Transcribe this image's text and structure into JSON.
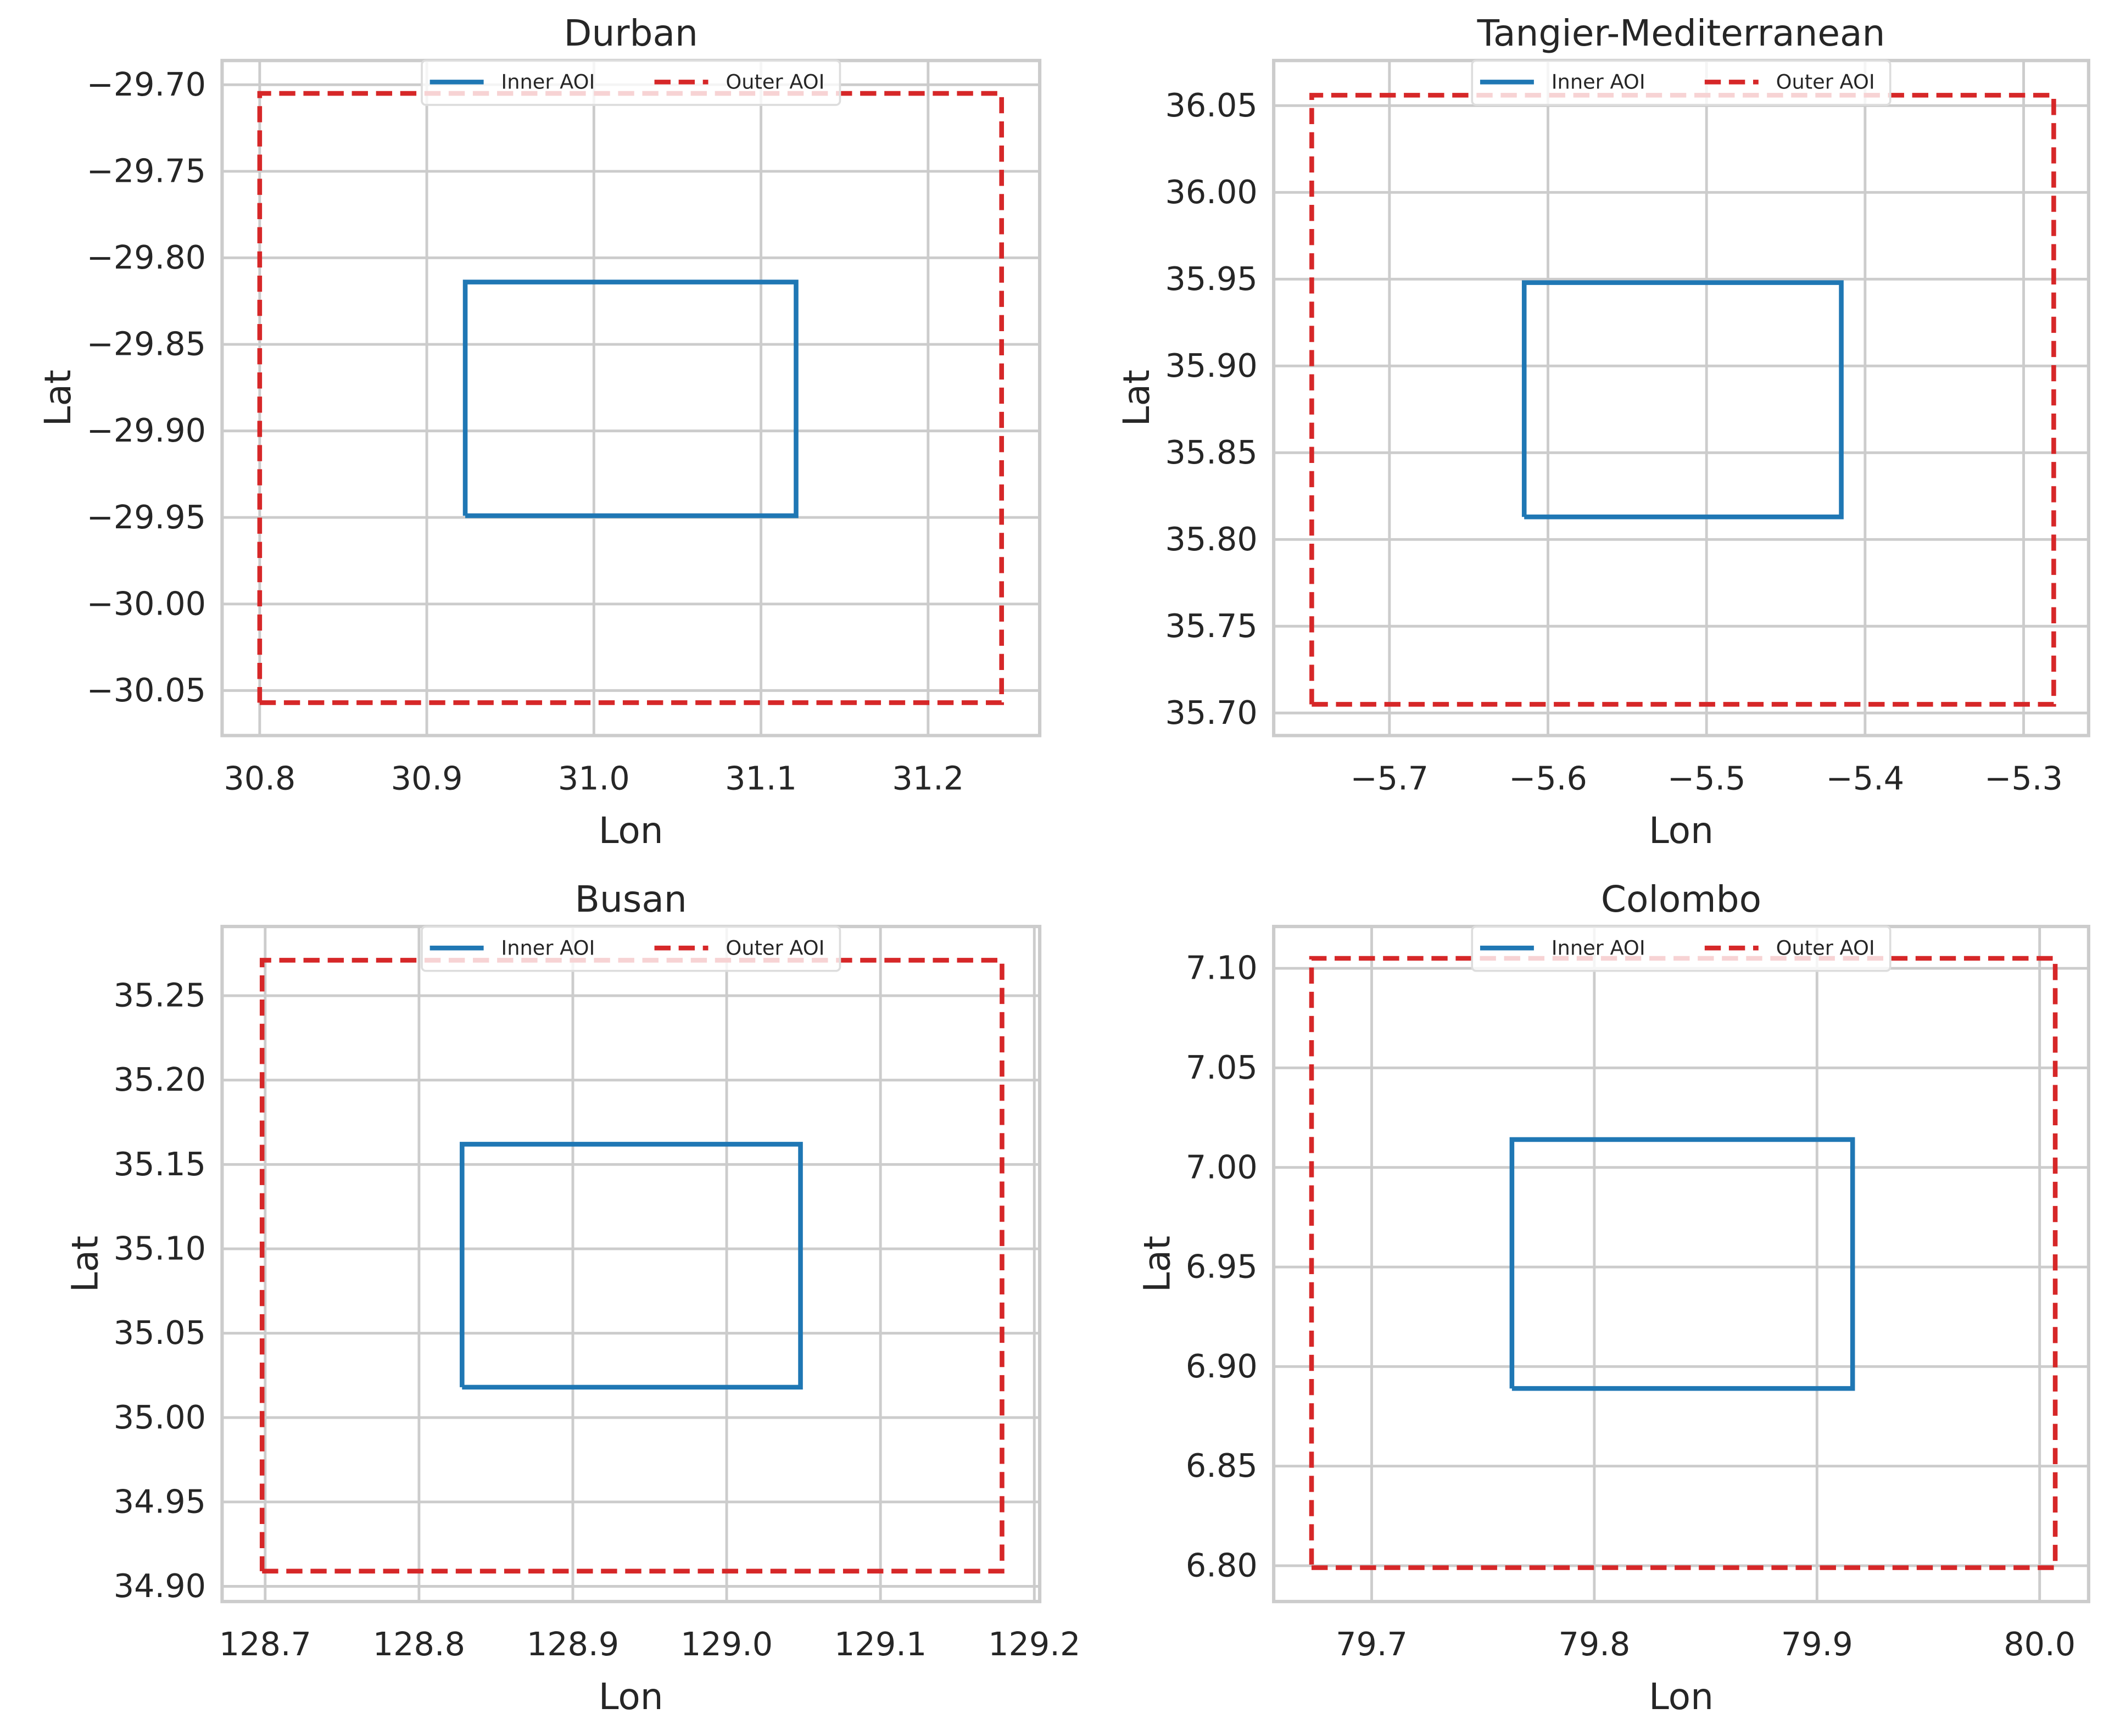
{
  "chart_data": [
    {
      "type": "line",
      "title": "Durban",
      "x_label": "Lon",
      "y_label": "Lat",
      "grid": true,
      "legend": "upper center",
      "xlim": [
        30.7775,
        31.2668
      ],
      "ylim": [
        -30.076,
        -29.686
      ],
      "xticks": [
        {
          "value": 30.8,
          "label": "30.8"
        },
        {
          "value": 30.9,
          "label": "30.9"
        },
        {
          "value": 31.0,
          "label": "31.0"
        },
        {
          "value": 31.1,
          "label": "31.1"
        },
        {
          "value": 31.2,
          "label": "31.2"
        }
      ],
      "yticks": [
        {
          "value": -30.05,
          "label": "−30.05"
        },
        {
          "value": -30.0,
          "label": "−30.00"
        },
        {
          "value": -29.95,
          "label": "−29.95"
        },
        {
          "value": -29.9,
          "label": "−29.90"
        },
        {
          "value": -29.85,
          "label": "−29.85"
        },
        {
          "value": -29.8,
          "label": "−29.80"
        },
        {
          "value": -29.75,
          "label": "−29.75"
        },
        {
          "value": -29.7,
          "label": "−29.70"
        }
      ],
      "series": [
        {
          "name": "Inner AOI",
          "color": "#1f77b4",
          "style": "solid",
          "x": [
            30.923,
            31.121,
            31.121,
            30.923,
            30.923
          ],
          "values": [
            -29.949,
            -29.949,
            -29.814,
            -29.814,
            -29.949
          ]
        },
        {
          "name": "Outer AOI",
          "color": "#d62728",
          "style": "dashed",
          "x": [
            30.8,
            31.244,
            31.244,
            30.8,
            30.8
          ],
          "values": [
            -30.057,
            -30.057,
            -29.705,
            -29.705,
            -30.057
          ]
        }
      ]
    },
    {
      "type": "line",
      "title": "Tangier-Mediterranean",
      "x_label": "Lon",
      "y_label": "Lat",
      "grid": true,
      "legend": "upper center",
      "xlim": [
        -5.773,
        -5.259
      ],
      "ylim": [
        35.687,
        36.076
      ],
      "xticks": [
        {
          "value": -5.7,
          "label": "−5.7"
        },
        {
          "value": -5.6,
          "label": "−5.6"
        },
        {
          "value": -5.5,
          "label": "−5.5"
        },
        {
          "value": -5.4,
          "label": "−5.4"
        },
        {
          "value": -5.3,
          "label": "−5.3"
        }
      ],
      "yticks": [
        {
          "value": 35.7,
          "label": "35.70"
        },
        35.75,
        {
          "value": 35.8,
          "label": "35.80"
        },
        35.85,
        {
          "value": 35.9,
          "label": "35.90"
        },
        35.95,
        {
          "value": 36.0,
          "label": "36.00"
        },
        36.05
      ],
      "series": [
        {
          "name": "Inner AOI",
          "color": "#1f77b4",
          "style": "solid",
          "x": [
            -5.615,
            -5.415,
            -5.415,
            -5.615,
            -5.615
          ],
          "values": [
            35.813,
            35.813,
            35.948,
            35.948,
            35.813
          ]
        },
        {
          "name": "Outer AOI",
          "color": "#d62728",
          "style": "dashed",
          "x": [
            -5.749,
            -5.281,
            -5.281,
            -5.749,
            -5.749
          ],
          "values": [
            35.705,
            35.705,
            36.056,
            36.056,
            35.705
          ]
        }
      ]
    },
    {
      "type": "line",
      "title": "Busan",
      "x_label": "Lon",
      "y_label": "Lat",
      "grid": true,
      "legend": "upper center",
      "xlim": [
        128.672,
        129.2035
      ],
      "ylim": [
        34.891,
        35.291
      ],
      "xticks": [
        128.7,
        128.8,
        128.9,
        {
          "value": 129.0,
          "label": "129.0"
        },
        129.1,
        129.2
      ],
      "yticks": [
        {
          "value": 34.9,
          "label": "34.90"
        },
        34.95,
        {
          "value": 35.0,
          "label": "35.00"
        },
        35.05,
        {
          "value": 35.1,
          "label": "35.10"
        },
        35.15,
        {
          "value": 35.2,
          "label": "35.20"
        },
        35.25
      ],
      "series": [
        {
          "name": "Inner AOI",
          "color": "#1f77b4",
          "style": "solid",
          "x": [
            128.828,
            129.048,
            129.048,
            128.828,
            128.828
          ],
          "values": [
            35.018,
            35.018,
            35.162,
            35.162,
            35.018
          ]
        },
        {
          "name": "Outer AOI",
          "color": "#d62728",
          "style": "dashed",
          "x": [
            128.698,
            129.179,
            129.179,
            128.698,
            128.698
          ],
          "values": [
            34.909,
            34.909,
            35.271,
            35.271,
            34.909
          ]
        }
      ]
    },
    {
      "type": "line",
      "title": "Colombo",
      "x_label": "Lon",
      "y_label": "Lat",
      "grid": true,
      "legend": "upper center",
      "xlim": [
        79.656,
        80.022
      ],
      "ylim": [
        6.782,
        7.121
      ],
      "xticks": [
        79.7,
        79.8,
        79.9,
        {
          "value": 80.0,
          "label": "80.0"
        }
      ],
      "yticks": [
        {
          "value": 6.8,
          "label": "6.80"
        },
        6.85,
        {
          "value": 6.9,
          "label": "6.90"
        },
        6.95,
        {
          "value": 7.0,
          "label": "7.00"
        },
        7.05,
        {
          "value": 7.1,
          "label": "7.10"
        }
      ],
      "series": [
        {
          "name": "Inner AOI",
          "color": "#1f77b4",
          "style": "solid",
          "x": [
            79.763,
            79.916,
            79.916,
            79.763,
            79.763
          ],
          "values": [
            6.889,
            6.889,
            7.014,
            7.014,
            6.889
          ]
        },
        {
          "name": "Outer AOI",
          "color": "#d62728",
          "style": "dashed",
          "x": [
            79.673,
            80.007,
            80.007,
            79.673,
            79.673
          ],
          "values": [
            6.799,
            6.799,
            7.105,
            7.105,
            6.799
          ]
        }
      ]
    }
  ]
}
